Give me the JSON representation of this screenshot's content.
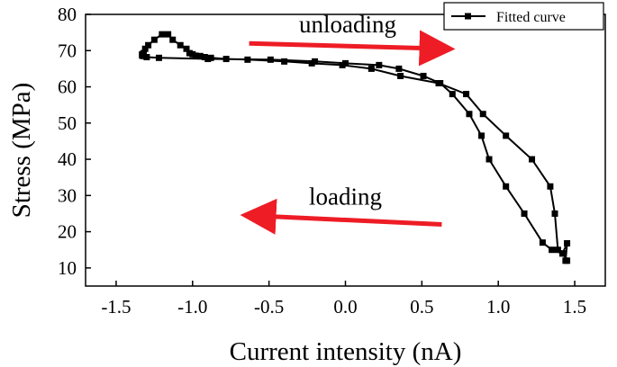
{
  "chart_data": {
    "type": "line",
    "xlabel": "Current intensity (nA)",
    "ylabel": "Stress (MPa)",
    "xlim": [
      -1.7,
      1.7
    ],
    "ylim": [
      5,
      80
    ],
    "xticks": [
      -1.5,
      -1.0,
      -0.5,
      0.0,
      0.5,
      1.0,
      1.5
    ],
    "xtick_labels": [
      "-1.5",
      "-1.0",
      "-0.5",
      "0.0",
      "0.5",
      "1.0",
      "1.5"
    ],
    "yticks": [
      10,
      20,
      30,
      40,
      50,
      60,
      70,
      80
    ],
    "ytick_labels": [
      "10",
      "20",
      "30",
      "40",
      "50",
      "60",
      "70",
      "80"
    ],
    "grid": false,
    "legend": {
      "position": "top-right",
      "entries": [
        "Fitted curve"
      ]
    },
    "annotations": [
      {
        "text": "unloading",
        "arrow_from": [
          -0.63,
          72
        ],
        "arrow_to": [
          0.66,
          70.5
        ],
        "arrow_color": "#ee1c25"
      },
      {
        "text": "loading",
        "arrow_from": [
          0.63,
          22
        ],
        "arrow_to": [
          -0.63,
          24.5
        ],
        "arrow_color": "#ee1c25"
      }
    ],
    "series": [
      {
        "name": "Fitted curve",
        "color": "#000000",
        "marker": "square",
        "x": [
          1.44,
          1.45,
          1.42,
          1.39,
          1.37,
          1.34,
          1.22,
          1.05,
          0.9,
          0.79,
          0.61,
          0.36,
          0.17,
          -0.02,
          -0.22,
          -0.4,
          -0.64,
          -0.78,
          -0.88,
          -0.92,
          -0.95,
          -0.98,
          -1.0,
          -1.02,
          -1.04,
          -1.08,
          -1.13,
          -1.16,
          -1.2,
          -1.25,
          -1.29,
          -1.31,
          -1.32,
          -1.33,
          -1.33,
          -1.32,
          -1.3,
          -1.22,
          -0.9,
          -0.49,
          -0.2,
          0.0,
          0.22,
          0.35,
          0.51,
          0.62,
          0.7,
          0.81,
          0.89,
          0.94,
          1.05,
          1.17,
          1.29,
          1.35,
          1.42,
          1.45
        ],
        "y": [
          12,
          16.8,
          14,
          15,
          25,
          32.5,
          40,
          46.5,
          52.5,
          58,
          61,
          63,
          65,
          66,
          66.5,
          67,
          67.5,
          67.7,
          68.0,
          68.2,
          68.5,
          68.6,
          69.0,
          69.3,
          70.5,
          71.5,
          73,
          74.5,
          74.5,
          73,
          71.5,
          70.5,
          69.3,
          69.0,
          68.6,
          68.5,
          68.2,
          68.0,
          67.7,
          67.5,
          67.0,
          66.5,
          66,
          65,
          63,
          61,
          58,
          52.5,
          46.5,
          40,
          32.5,
          25,
          17,
          15,
          14,
          12
        ]
      }
    ]
  }
}
